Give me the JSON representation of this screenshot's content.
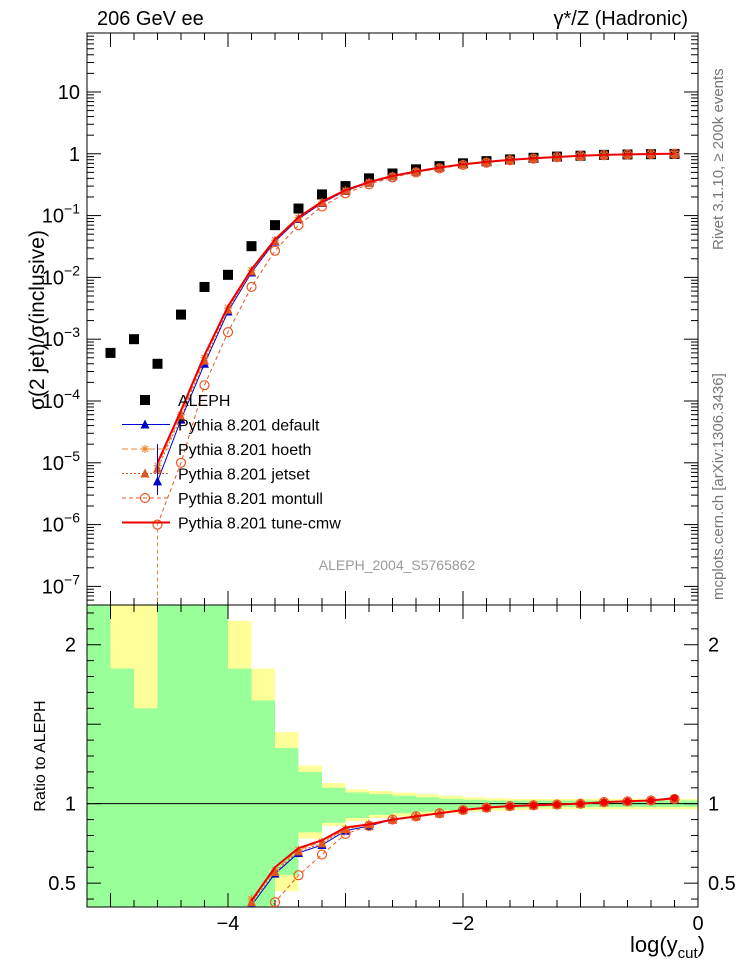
{
  "header": {
    "energy_label": "206 GeV ee",
    "process_label": "γ*/Z (Hadronic)"
  },
  "side_labels": {
    "rivet": "Rivet 3.1.10, ≥ 200k events",
    "mcplots": "mcplots.cern.ch [arXiv:1306.3436]"
  },
  "watermark": "ALEPH_2004_S5765862",
  "chart_data": [
    {
      "type": "scatter",
      "panel": "main",
      "ylabel": "σ(2 jet)/σ(inclusive)",
      "yscale": "log",
      "ylim": [
        5e-08,
        90
      ],
      "xlim": [
        -5.2,
        0
      ],
      "y_tick_labels": [
        "10⁻⁷",
        "10⁻⁶",
        "10⁻⁵",
        "10⁻⁴",
        "10⁻³",
        "10⁻²",
        "10⁻¹",
        "1",
        "10"
      ],
      "legend_position": "lower-left",
      "series": [
        {
          "name": "ALEPH",
          "color": "#000000",
          "marker": "square",
          "x": [
            -5.0,
            -4.8,
            -4.6,
            -4.4,
            -4.2,
            -4.0,
            -3.8,
            -3.6,
            -3.4,
            -3.2,
            -3.0,
            -2.8,
            -2.6,
            -2.4,
            -2.2,
            -2.0,
            -1.8,
            -1.6,
            -1.4,
            -1.2,
            -1.0,
            -0.8,
            -0.6,
            -0.4,
            -0.2
          ],
          "y": [
            0.0006,
            0.001,
            0.0004,
            0.0025,
            0.007,
            0.011,
            0.032,
            0.07,
            0.13,
            0.22,
            0.3,
            0.4,
            0.48,
            0.56,
            0.63,
            0.7,
            0.76,
            0.81,
            0.86,
            0.9,
            0.93,
            0.96,
            0.975,
            0.985,
            0.995
          ]
        },
        {
          "name": "Pythia 8.201 default",
          "color": "#0000cc",
          "marker": "triangle",
          "x": [
            -4.6,
            -4.4,
            -4.2,
            -4.0,
            -3.8,
            -3.6,
            -3.4,
            -3.2,
            -3.0,
            -2.8,
            -2.6,
            -2.4,
            -2.2,
            -2.0,
            -1.8,
            -1.6,
            -1.4,
            -1.2,
            -1.0,
            -0.8,
            -0.6,
            -0.4,
            -0.2
          ],
          "y": [
            5e-06,
            5e-05,
            0.0004,
            0.0028,
            0.012,
            0.038,
            0.088,
            0.16,
            0.25,
            0.34,
            0.43,
            0.51,
            0.59,
            0.67,
            0.73,
            0.79,
            0.84,
            0.88,
            0.92,
            0.95,
            0.975,
            0.99,
            1.0
          ]
        },
        {
          "name": "Pythia 8.201 hoeth",
          "color": "#ee8833",
          "marker": "star",
          "x": [
            -4.6,
            -4.4,
            -4.2,
            -4.0,
            -3.8,
            -3.6,
            -3.4,
            -3.2,
            -3.0,
            -2.8,
            -2.6,
            -2.4,
            -2.2,
            -2.0,
            -1.8,
            -1.6,
            -1.4,
            -1.2,
            -1.0,
            -0.8,
            -0.6,
            -0.4,
            -0.2
          ],
          "y": [
            9e-06,
            6e-05,
            0.0005,
            0.0032,
            0.013,
            0.04,
            0.092,
            0.165,
            0.255,
            0.345,
            0.435,
            0.515,
            0.595,
            0.675,
            0.735,
            0.795,
            0.845,
            0.885,
            0.925,
            0.955,
            0.978,
            0.992,
            1.0
          ]
        },
        {
          "name": "Pythia 8.201 jetset",
          "color": "#dd5522",
          "marker": "triangle",
          "x": [
            -4.6,
            -4.4,
            -4.2,
            -4.0,
            -3.8,
            -3.6,
            -3.4,
            -3.2,
            -3.0,
            -2.8,
            -2.6,
            -2.4,
            -2.2,
            -2.0,
            -1.8,
            -1.6,
            -1.4,
            -1.2,
            -1.0,
            -0.8,
            -0.6,
            -0.4,
            -0.2
          ],
          "y": [
            8e-06,
            5.5e-05,
            0.00045,
            0.003,
            0.0125,
            0.039,
            0.09,
            0.162,
            0.252,
            0.342,
            0.432,
            0.512,
            0.592,
            0.672,
            0.732,
            0.792,
            0.842,
            0.882,
            0.922,
            0.952,
            0.976,
            0.991,
            1.0
          ]
        },
        {
          "name": "Pythia 8.201 montull",
          "color": "#ee5522",
          "marker": "open-circle",
          "x": [
            -4.6,
            -4.4,
            -4.2,
            -4.0,
            -3.8,
            -3.6,
            -3.4,
            -3.2,
            -3.0,
            -2.8,
            -2.6,
            -2.4,
            -2.2,
            -2.0,
            -1.8,
            -1.6,
            -1.4,
            -1.2,
            -1.0,
            -0.8,
            -0.6,
            -0.4,
            -0.2
          ],
          "y": [
            1e-06,
            1e-05,
            0.00018,
            0.0013,
            0.007,
            0.027,
            0.07,
            0.14,
            0.23,
            0.32,
            0.415,
            0.5,
            0.58,
            0.66,
            0.72,
            0.785,
            0.835,
            0.88,
            0.92,
            0.95,
            0.975,
            0.99,
            1.0
          ]
        },
        {
          "name": "Pythia 8.201 tune-cmw",
          "color": "#ee0000",
          "marker": "line",
          "x": [
            -4.6,
            -4.4,
            -4.2,
            -4.0,
            -3.8,
            -3.6,
            -3.4,
            -3.2,
            -3.0,
            -2.8,
            -2.6,
            -2.4,
            -2.2,
            -2.0,
            -1.8,
            -1.6,
            -1.4,
            -1.2,
            -1.0,
            -0.8,
            -0.6,
            -0.4,
            -0.2
          ],
          "y": [
            1e-05,
            7e-05,
            0.00055,
            0.0034,
            0.0135,
            0.041,
            0.094,
            0.168,
            0.258,
            0.348,
            0.438,
            0.518,
            0.598,
            0.678,
            0.738,
            0.798,
            0.848,
            0.888,
            0.928,
            0.958,
            0.979,
            0.993,
            1.0
          ]
        }
      ]
    },
    {
      "type": "line",
      "panel": "ratio",
      "xlabel": "log(y_cut)",
      "ylabel": "Ratio to ALEPH",
      "ylim": [
        0.35,
        2.25
      ],
      "xlim": [
        -5.2,
        0
      ],
      "x_tick_labels": [
        "−4",
        "−2",
        "0"
      ],
      "y_tick_labels": [
        "0.5",
        "1",
        "2"
      ],
      "reference_line": 1,
      "uncertainty_bands": {
        "bin_edges": [
          -5.2,
          -5.0,
          -4.8,
          -4.6,
          -4.4,
          -4.2,
          -4.0,
          -3.8,
          -3.6,
          -3.4,
          -3.2,
          -3.0,
          -2.8,
          -2.6,
          -2.4,
          -2.2,
          -2.0,
          -1.8,
          -1.6,
          -1.4,
          -1.2,
          -1.0,
          -0.8,
          -0.6,
          -0.4,
          -0.2,
          0.0
        ],
        "inner": [
          [
            0.35,
            2.25
          ],
          [
            0.35,
            1.85
          ],
          [
            0.35,
            1.6
          ],
          [
            0.35,
            2.25
          ],
          [
            0.35,
            2.25
          ],
          [
            0.35,
            2.25
          ],
          [
            0.35,
            1.85
          ],
          [
            0.35,
            1.65
          ],
          [
            0.55,
            1.35
          ],
          [
            0.82,
            1.2
          ],
          [
            0.88,
            1.1
          ],
          [
            0.91,
            1.07
          ],
          [
            0.93,
            1.06
          ],
          [
            0.94,
            1.05
          ],
          [
            0.95,
            1.04
          ],
          [
            0.96,
            1.03
          ],
          [
            0.965,
            1.025
          ],
          [
            0.97,
            1.02
          ],
          [
            0.975,
            1.02
          ],
          [
            0.98,
            1.02
          ],
          [
            0.98,
            1.02
          ],
          [
            0.98,
            1.02
          ],
          [
            0.98,
            1.02
          ],
          [
            0.98,
            1.02
          ],
          [
            0.98,
            1.02
          ],
          [
            0.98,
            1.02
          ]
        ],
        "outer": [
          [
            0.35,
            2.25
          ],
          [
            0.35,
            2.25
          ],
          [
            0.35,
            2.25
          ],
          [
            0.35,
            2.25
          ],
          [
            0.35,
            2.25
          ],
          [
            0.35,
            2.25
          ],
          [
            0.35,
            2.15
          ],
          [
            0.35,
            1.85
          ],
          [
            0.45,
            1.45
          ],
          [
            0.78,
            1.24
          ],
          [
            0.86,
            1.13
          ],
          [
            0.89,
            1.09
          ],
          [
            0.91,
            1.08
          ],
          [
            0.92,
            1.07
          ],
          [
            0.93,
            1.06
          ],
          [
            0.94,
            1.05
          ],
          [
            0.95,
            1.04
          ],
          [
            0.955,
            1.035
          ],
          [
            0.96,
            1.03
          ],
          [
            0.965,
            1.03
          ],
          [
            0.965,
            1.03
          ],
          [
            0.965,
            1.03
          ],
          [
            0.965,
            1.03
          ],
          [
            0.965,
            1.03
          ],
          [
            0.965,
            1.03
          ],
          [
            0.965,
            1.03
          ]
        ]
      },
      "series": [
        {
          "name": "Pythia 8.201 default",
          "color": "#0000cc",
          "x": [
            -3.8,
            -3.6,
            -3.4,
            -3.2,
            -3.0,
            -2.8,
            -2.6,
            -2.4,
            -2.2,
            -2.0,
            -1.8,
            -1.6,
            -1.4,
            -1.2,
            -1.0,
            -0.8,
            -0.6,
            -0.4,
            -0.2
          ],
          "y": [
            0.36,
            0.56,
            0.69,
            0.74,
            0.83,
            0.86,
            0.9,
            0.92,
            0.94,
            0.96,
            0.975,
            0.985,
            0.99,
            0.995,
            1.0,
            1.01,
            1.015,
            1.02,
            1.03
          ]
        },
        {
          "name": "Pythia 8.201 hoeth",
          "color": "#ee8833",
          "x": [
            -3.8,
            -3.6,
            -3.4,
            -3.2,
            -3.0,
            -2.8,
            -2.6,
            -2.4,
            -2.2,
            -2.0,
            -1.8,
            -1.6,
            -1.4,
            -1.2,
            -1.0,
            -0.8,
            -0.6,
            -0.4,
            -0.2
          ],
          "y": [
            0.4,
            0.58,
            0.71,
            0.76,
            0.84,
            0.87,
            0.9,
            0.92,
            0.94,
            0.96,
            0.975,
            0.985,
            0.99,
            0.995,
            1.0,
            1.01,
            1.015,
            1.02,
            1.03
          ]
        },
        {
          "name": "Pythia 8.201 jetset",
          "color": "#dd5522",
          "x": [
            -3.8,
            -3.6,
            -3.4,
            -3.2,
            -3.0,
            -2.8,
            -2.6,
            -2.4,
            -2.2,
            -2.0,
            -1.8,
            -1.6,
            -1.4,
            -1.2,
            -1.0,
            -0.8,
            -0.6,
            -0.4,
            -0.2
          ],
          "y": [
            0.38,
            0.57,
            0.7,
            0.75,
            0.84,
            0.87,
            0.9,
            0.92,
            0.94,
            0.96,
            0.975,
            0.985,
            0.99,
            0.995,
            1.0,
            1.01,
            1.015,
            1.02,
            1.03
          ]
        },
        {
          "name": "Pythia 8.201 montull",
          "color": "#ee5522",
          "x": [
            -3.8,
            -3.6,
            -3.4,
            -3.2,
            -3.0,
            -2.8,
            -2.6,
            -2.4,
            -2.2,
            -2.0,
            -1.8,
            -1.6,
            -1.4,
            -1.2,
            -1.0,
            -0.8,
            -0.6,
            -0.4,
            -0.2
          ],
          "y": [
            0.2,
            0.38,
            0.55,
            0.68,
            0.81,
            0.86,
            0.9,
            0.92,
            0.94,
            0.96,
            0.975,
            0.985,
            0.99,
            0.995,
            1.0,
            1.01,
            1.015,
            1.02,
            1.03
          ]
        },
        {
          "name": "Pythia 8.201 tune-cmw",
          "color": "#ee0000",
          "x": [
            -3.8,
            -3.6,
            -3.4,
            -3.2,
            -3.0,
            -2.8,
            -2.6,
            -2.4,
            -2.2,
            -2.0,
            -1.8,
            -1.6,
            -1.4,
            -1.2,
            -1.0,
            -0.8,
            -0.6,
            -0.4,
            -0.2
          ],
          "y": [
            0.39,
            0.6,
            0.72,
            0.77,
            0.85,
            0.87,
            0.9,
            0.92,
            0.94,
            0.96,
            0.975,
            0.985,
            0.99,
            0.995,
            1.0,
            1.01,
            1.015,
            1.02,
            1.035
          ]
        }
      ]
    }
  ]
}
